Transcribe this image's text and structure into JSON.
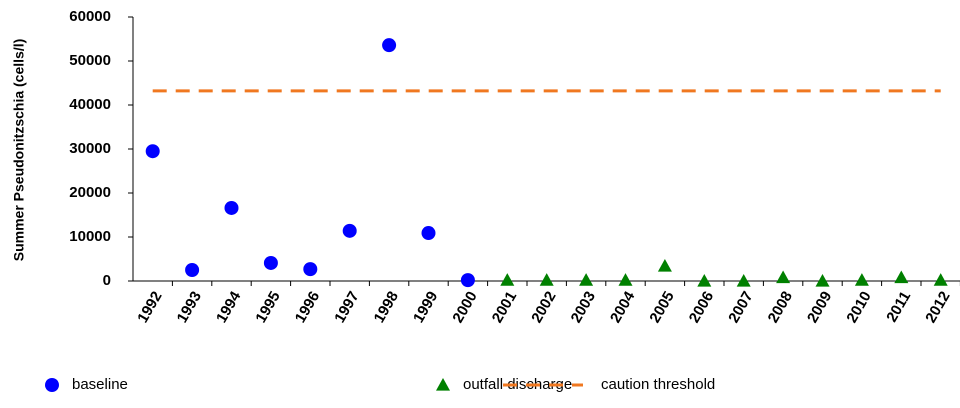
{
  "chart_data": {
    "type": "scatter",
    "y_label": "Summer Pseudonitzschia (cells/l)",
    "categories": [
      "1992",
      "1993",
      "1994",
      "1995",
      "1996",
      "1997",
      "1998",
      "1999",
      "2000",
      "2001",
      "2002",
      "2003",
      "2004",
      "2005",
      "2006",
      "2007",
      "2008",
      "2009",
      "2010",
      "2011",
      "2012"
    ],
    "series": [
      {
        "name": "baseline",
        "color": "#0000ff",
        "marker": "circle",
        "values": [
          29500,
          2500,
          16600,
          4100,
          2700,
          11400,
          53600,
          10900,
          200,
          null,
          null,
          null,
          null,
          null,
          null,
          null,
          null,
          null,
          null,
          null,
          null
        ]
      },
      {
        "name": "outfall discharge",
        "color": "#008000",
        "marker": "triangle",
        "values": [
          null,
          null,
          null,
          null,
          null,
          null,
          null,
          null,
          null,
          200,
          200,
          200,
          200,
          3400,
          0,
          0,
          800,
          0,
          200,
          800,
          200
        ]
      },
      {
        "name": "caution threshold",
        "color": "#f07820",
        "marker": "dashed-line",
        "values": [
          43200,
          43200,
          43200,
          43200,
          43200,
          43200,
          43200,
          43200,
          43200,
          43200,
          43200,
          43200,
          43200,
          43200,
          43200,
          43200,
          43200,
          43200,
          43200,
          43200,
          43200
        ]
      }
    ],
    "ylim": [
      0,
      60000
    ],
    "yticks": [
      0,
      10000,
      20000,
      30000,
      40000,
      50000,
      60000
    ],
    "grid": false
  }
}
